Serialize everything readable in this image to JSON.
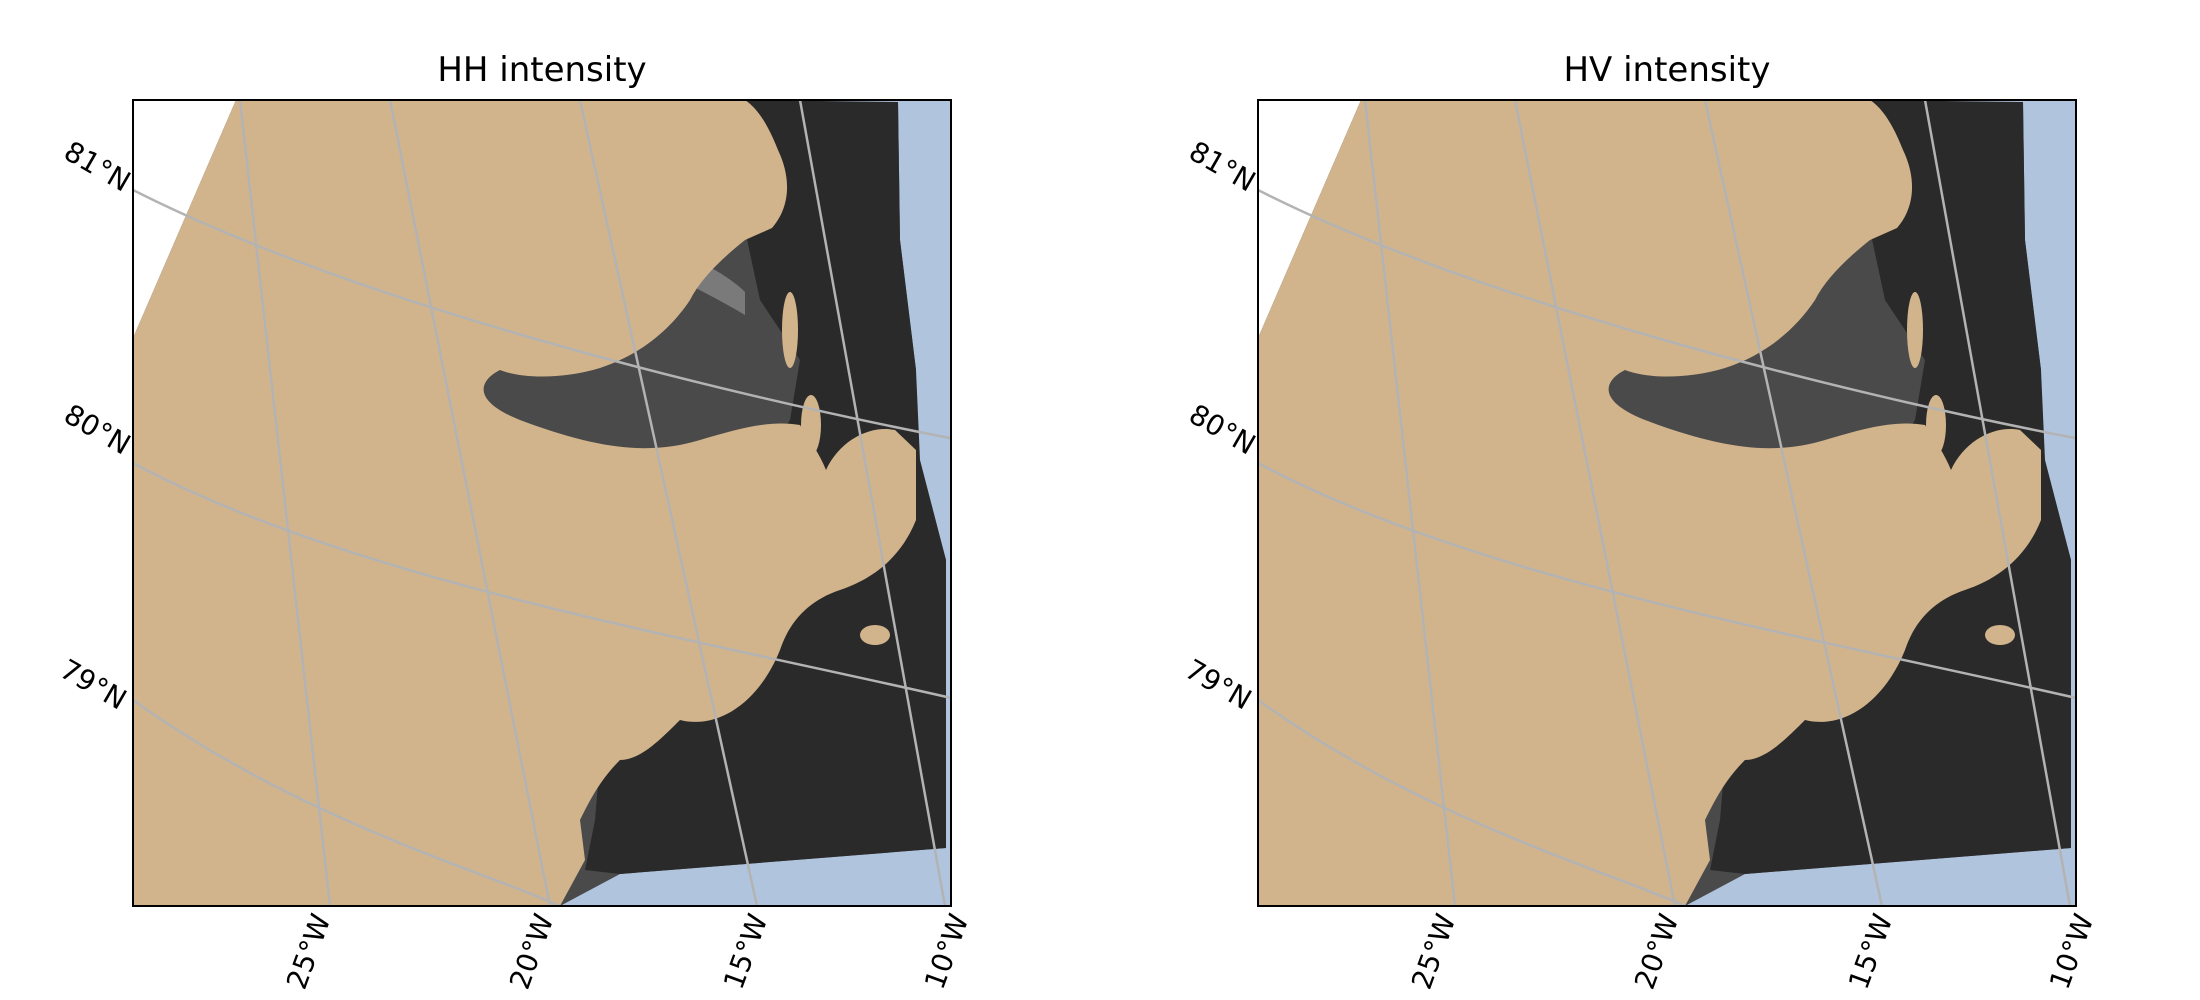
{
  "colors": {
    "land": "#d2b48c",
    "ocean": "#b0c4de",
    "nodata": "#ffffff",
    "graticule": "#b3b3b3",
    "sar_dark": "#2a2a2a",
    "sar_mid": "#4a4a4a",
    "sar_light": "#7a7a7a",
    "frame": "#000000"
  },
  "panels": [
    {
      "title": "HH intensity",
      "lat_labels": [
        "81°N",
        "80°N",
        "79°N"
      ],
      "lon_labels": [
        "25°W",
        "20°W",
        "15°W",
        "10°W"
      ]
    },
    {
      "title": "HV intensity",
      "lat_labels": [
        "81°N",
        "80°N",
        "79°N"
      ],
      "lon_labels": [
        "25°W",
        "20°W",
        "15°W",
        "10°W"
      ]
    }
  ],
  "legend": {}
}
